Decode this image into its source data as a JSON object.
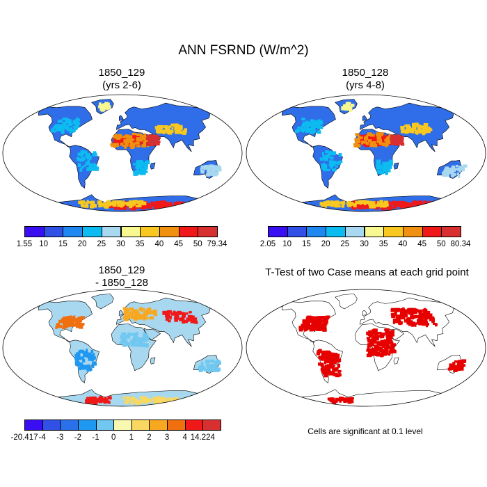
{
  "title": "ANN FSRND (W/m^2)",
  "panels": [
    {
      "title_line1": "1850_129",
      "title_line2": "(yrs 2-6)",
      "kind": "field"
    },
    {
      "title_line1": "1850_128",
      "title_line2": "(yrs 4-8)",
      "kind": "field"
    },
    {
      "title_line1": "1850_129",
      "title_line2": "- 1850_128",
      "kind": "diff"
    },
    {
      "title_line1": "T-Test of two Case means at each grid point",
      "title_line2": "",
      "kind": "ttest"
    }
  ],
  "note": "Cells are significant at 0.1 level",
  "chart_data": [
    {
      "type": "heatmap",
      "title": "1850_129 (yrs 2-6)",
      "colorbar": {
        "labels": [
          "1.55",
          "10",
          "15",
          "20",
          "25",
          "30",
          "35",
          "40",
          "45",
          "50",
          "79.34"
        ],
        "colors": [
          "#3a0ef2",
          "#3050e6",
          "#1e88f0",
          "#0cbcf0",
          "#a8d8f0",
          "#f8f890",
          "#f8c820",
          "#f09010",
          "#f01818",
          "#d83030"
        ]
      }
    },
    {
      "type": "heatmap",
      "title": "1850_128 (yrs 4-8)",
      "colorbar": {
        "labels": [
          "2.05",
          "10",
          "15",
          "20",
          "25",
          "30",
          "35",
          "40",
          "45",
          "50",
          "80.34"
        ],
        "colors": [
          "#3a0ef2",
          "#3050e6",
          "#1e88f0",
          "#0cbcf0",
          "#a8d8f0",
          "#f8f890",
          "#f8c820",
          "#f09010",
          "#f01818",
          "#d83030"
        ]
      }
    },
    {
      "type": "heatmap",
      "title": "1850_129 - 1850_128",
      "colorbar": {
        "labels": [
          "-20.417",
          "-4",
          "-3",
          "-2",
          "-1",
          "0",
          "1",
          "2",
          "3",
          "4",
          "14.224"
        ],
        "colors": [
          "#3a0ef2",
          "#3050e6",
          "#2a70ea",
          "#1e98f0",
          "#70c8f0",
          "#f8f8b0",
          "#f8d860",
          "#f8a820",
          "#f07010",
          "#f01818",
          "#d83030"
        ]
      }
    },
    {
      "type": "heatmap",
      "title": "T-Test of two Case means at each grid point",
      "colors": {
        "significant": "#e60000"
      }
    }
  ]
}
